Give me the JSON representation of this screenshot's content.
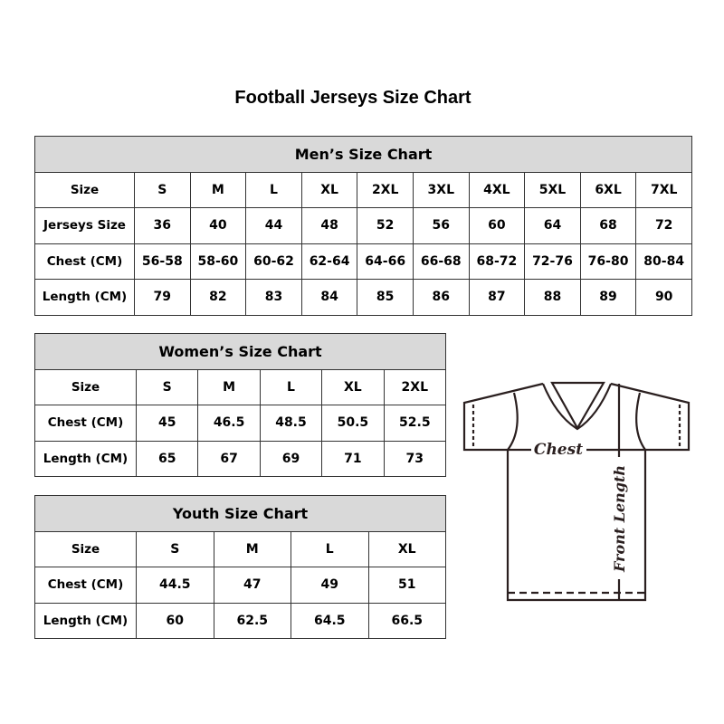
{
  "title": "Football Jerseys Size Chart",
  "mens": {
    "heading": "Men’s Size Chart",
    "rows": [
      [
        "Size",
        "S",
        "M",
        "L",
        "XL",
        "2XL",
        "3XL",
        "4XL",
        "5XL",
        "6XL",
        "7XL"
      ],
      [
        "Jerseys Size",
        "36",
        "40",
        "44",
        "48",
        "52",
        "56",
        "60",
        "64",
        "68",
        "72"
      ],
      [
        "Chest (CM)",
        "56-58",
        "58-60",
        "60-62",
        "62-64",
        "64-66",
        "66-68",
        "68-72",
        "72-76",
        "76-80",
        "80-84"
      ],
      [
        "Length (CM)",
        "79",
        "82",
        "83",
        "84",
        "85",
        "86",
        "87",
        "88",
        "89",
        "90"
      ]
    ]
  },
  "womens": {
    "heading": "Women’s Size Chart",
    "rows": [
      [
        "Size",
        "S",
        "M",
        "L",
        "XL",
        "2XL"
      ],
      [
        "Chest (CM)",
        "45",
        "46.5",
        "48.5",
        "50.5",
        "52.5"
      ],
      [
        "Length (CM)",
        "65",
        "67",
        "69",
        "71",
        "73"
      ]
    ]
  },
  "youth": {
    "heading": "Youth Size Chart",
    "rows": [
      [
        "Size",
        "S",
        "M",
        "L",
        "XL"
      ],
      [
        "Chest (CM)",
        "44.5",
        "47",
        "49",
        "51"
      ],
      [
        "Length (CM)",
        "60",
        "62.5",
        "64.5",
        "66.5"
      ]
    ]
  },
  "diagram": {
    "chest_label": "Chest",
    "length_label": "Front Length"
  }
}
